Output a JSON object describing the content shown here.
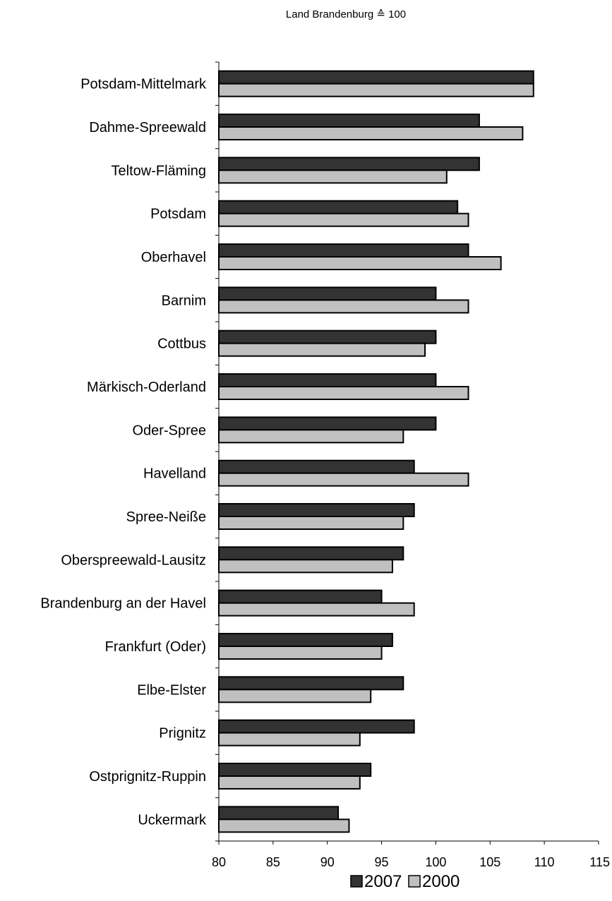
{
  "chart_data": {
    "type": "bar",
    "orientation": "horizontal",
    "subtitle": "Land Brandenburg ≙ 100",
    "categories": [
      "Potsdam-Mittelmark",
      "Dahme-Spreewald",
      "Teltow-Fläming",
      "Potsdam",
      "Oberhavel",
      "Barnim",
      "Cottbus",
      "Märkisch-Oderland",
      "Oder-Spree",
      "Havelland",
      "Spree-Neiße",
      "Oberspreewald-Lausitz",
      "Brandenburg an der Havel",
      "Frankfurt (Oder)",
      "Elbe-Elster",
      "Prignitz",
      "Ostprignitz-Ruppin",
      "Uckermark"
    ],
    "series": [
      {
        "name": "2007",
        "color": "#333333",
        "values": [
          109,
          104,
          104,
          102,
          103,
          100,
          100,
          100,
          100,
          98,
          98,
          97,
          95,
          96,
          97,
          98,
          94,
          91
        ]
      },
      {
        "name": "2000",
        "color": "#c0c0c0",
        "values": [
          109,
          108,
          101,
          103,
          106,
          103,
          99,
          103,
          97,
          103,
          97,
          96,
          98,
          95,
          94,
          93,
          93,
          92
        ]
      }
    ],
    "xlim": [
      80,
      115
    ],
    "xticks": [
      "80",
      "85",
      "90",
      "95",
      "100",
      "105",
      "110",
      "115"
    ],
    "grid": false,
    "legend_position": "bottom"
  }
}
